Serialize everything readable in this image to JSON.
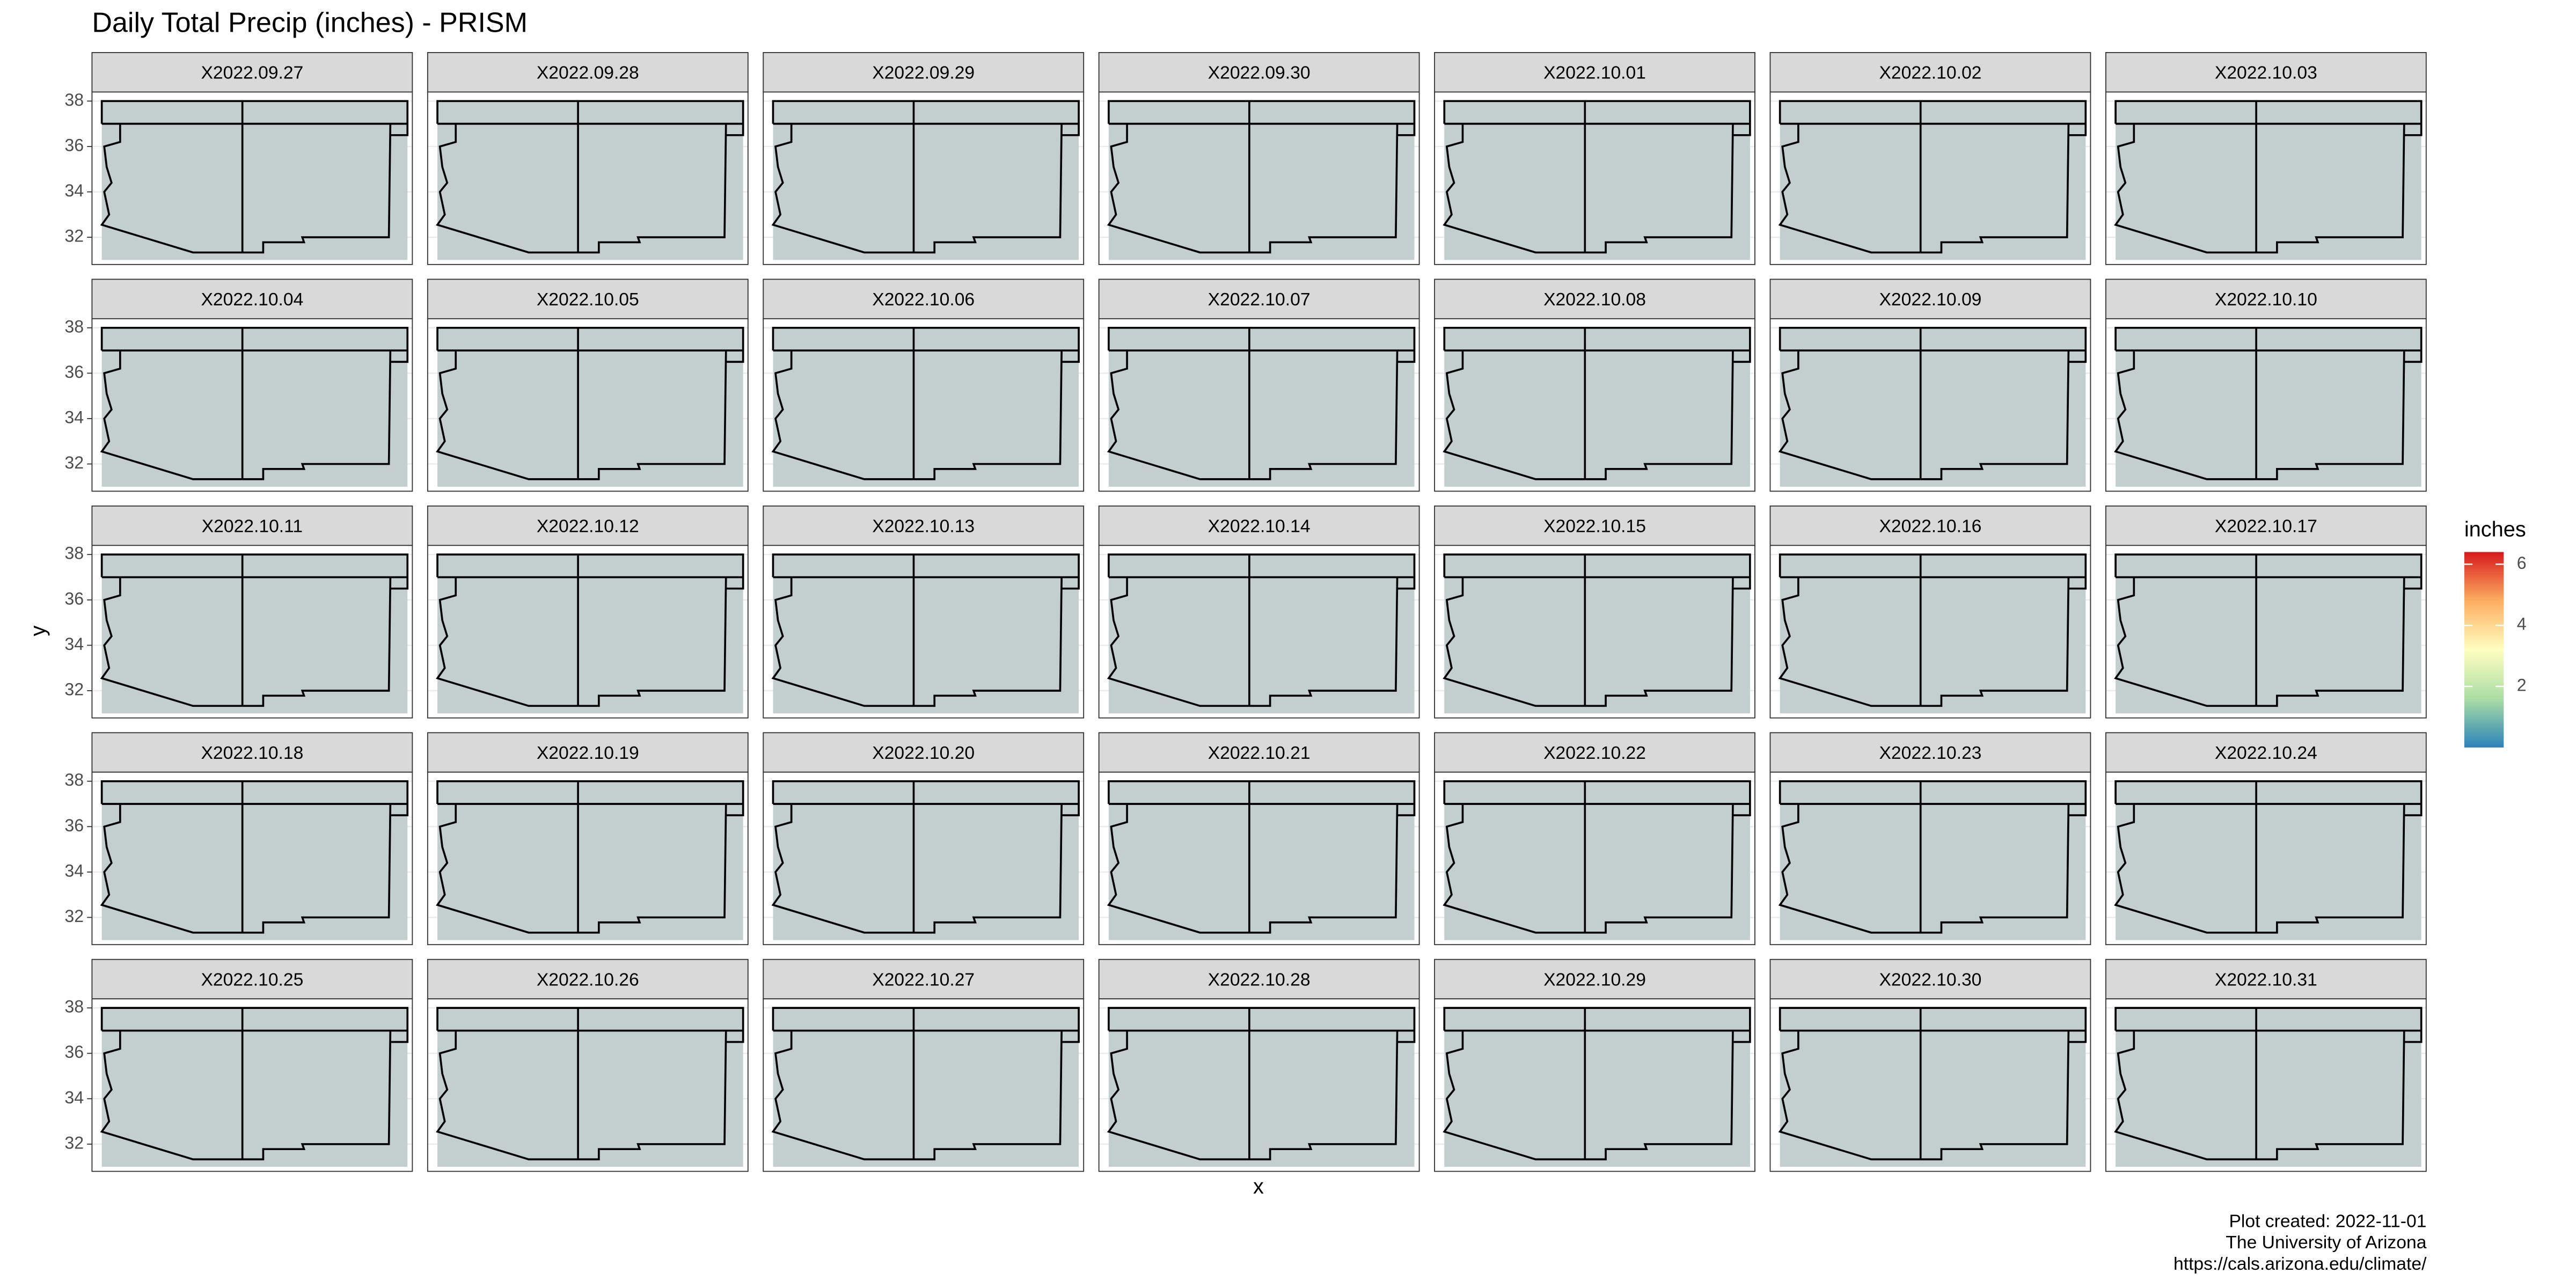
{
  "chart_data": {
    "type": "raster",
    "title": "Daily Total Precip (inches) - PRISM",
    "xlabel": "x",
    "ylabel": "y",
    "facets": [
      "X2022.09.27",
      "X2022.09.28",
      "X2022.09.29",
      "X2022.09.30",
      "X2022.10.01",
      "X2022.10.02",
      "X2022.10.03",
      "X2022.10.04",
      "X2022.10.05",
      "X2022.10.06",
      "X2022.10.07",
      "X2022.10.08",
      "X2022.10.09",
      "X2022.10.10",
      "X2022.10.11",
      "X2022.10.12",
      "X2022.10.13",
      "X2022.10.14",
      "X2022.10.15",
      "X2022.10.16",
      "X2022.10.17",
      "X2022.10.18",
      "X2022.10.19",
      "X2022.10.20",
      "X2022.10.21",
      "X2022.10.22",
      "X2022.10.23",
      "X2022.10.24",
      "X2022.10.25",
      "X2022.10.26",
      "X2022.10.27",
      "X2022.10.28",
      "X2022.10.29",
      "X2022.10.30",
      "X2022.10.31"
    ],
    "ncol": 7,
    "xlim": [
      -115.2,
      -102.1
    ],
    "ylim": [
      30.8,
      38.4
    ],
    "yticks": [
      32,
      34,
      36,
      38
    ],
    "grid": true,
    "legend": {
      "title": "inches",
      "position": "right",
      "limits": [
        0,
        6.4
      ],
      "ticks": [
        2,
        4,
        6
      ],
      "colors": [
        "#2b83ba",
        "#abdda4",
        "#ffffbf",
        "#fdae61",
        "#d7191c"
      ]
    },
    "caption": [
      "Plot created: 2022-11-01",
      "The University of Arizona",
      "https://cals.arizona.edu/climate/"
    ]
  }
}
